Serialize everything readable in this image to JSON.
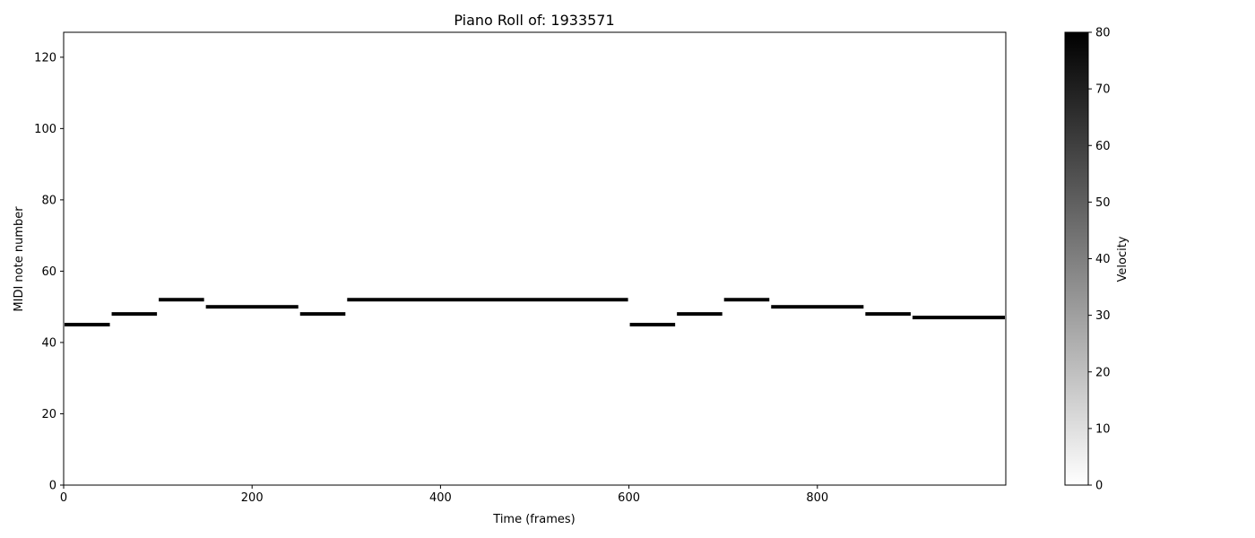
{
  "chart_data": {
    "type": "heatmap",
    "title": "Piano Roll of: 1933571",
    "xlabel": "Time (frames)",
    "ylabel": "MIDI note number",
    "xlim": [
      0,
      1000
    ],
    "ylim": [
      0,
      127
    ],
    "xticks": [
      0,
      200,
      400,
      600,
      800
    ],
    "yticks": [
      0,
      20,
      40,
      60,
      80,
      100,
      120
    ],
    "grid": false,
    "colormap": "gray_r",
    "notes": [
      {
        "pitch": 45,
        "start": 0,
        "end": 50,
        "velocity": 80
      },
      {
        "pitch": 48,
        "start": 50,
        "end": 100,
        "velocity": 80
      },
      {
        "pitch": 52,
        "start": 100,
        "end": 150,
        "velocity": 80
      },
      {
        "pitch": 50,
        "start": 150,
        "end": 250,
        "velocity": 80
      },
      {
        "pitch": 48,
        "start": 250,
        "end": 300,
        "velocity": 80
      },
      {
        "pitch": 52,
        "start": 300,
        "end": 600,
        "velocity": 80
      },
      {
        "pitch": 45,
        "start": 600,
        "end": 650,
        "velocity": 80
      },
      {
        "pitch": 48,
        "start": 650,
        "end": 700,
        "velocity": 80
      },
      {
        "pitch": 52,
        "start": 700,
        "end": 750,
        "velocity": 80
      },
      {
        "pitch": 50,
        "start": 750,
        "end": 850,
        "velocity": 80
      },
      {
        "pitch": 48,
        "start": 850,
        "end": 900,
        "velocity": 80
      },
      {
        "pitch": 47,
        "start": 900,
        "end": 1000,
        "velocity": 80
      }
    ],
    "colorbar": {
      "label": "Velocity",
      "range": [
        0,
        80
      ],
      "ticks": [
        0,
        10,
        20,
        30,
        40,
        50,
        60,
        70,
        80
      ]
    }
  }
}
